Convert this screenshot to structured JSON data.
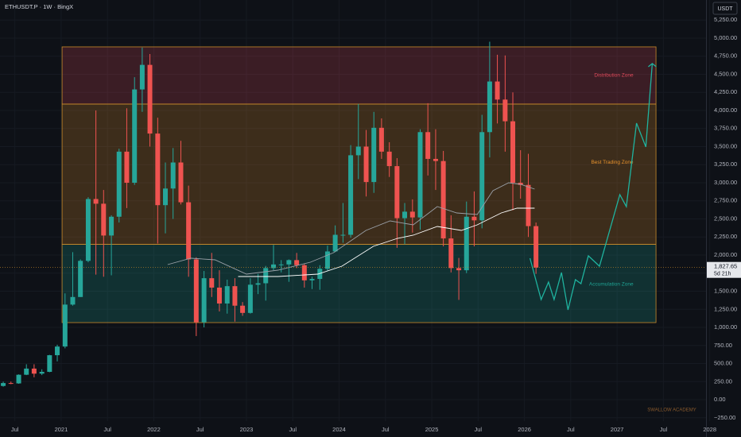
{
  "chart_data": {
    "type": "candlestick",
    "title": "ETHUSDT.P · 1W · BingX",
    "currency": "USDT",
    "watermark": "SWALLOW ACADEMY",
    "up_color": "#26a69a",
    "down_color": "#ef5350",
    "xlim": [
      2020.34,
      2027.96
    ],
    "ylim": [
      -516,
      5527
    ],
    "xticks": [
      {
        "value": 2020.5,
        "label": "Jul"
      },
      2021,
      {
        "value": 2021.5,
        "label": "Jul"
      },
      2022,
      {
        "value": 2022.5,
        "label": "Jul"
      },
      2023,
      {
        "value": 2023.5,
        "label": "Jul"
      },
      2024,
      {
        "value": 2024.5,
        "label": "Jul"
      },
      2025,
      {
        "value": 2025.5,
        "label": "Jul"
      },
      2026,
      {
        "value": 2026.5,
        "label": "Jul"
      },
      2027,
      {
        "value": 2027.5,
        "label": "Jul"
      },
      2028
    ],
    "yticks": [
      {
        "value": -250,
        "label": "−250.00"
      },
      {
        "value": 0,
        "label": "0.00"
      },
      {
        "value": 250,
        "label": "250.00"
      },
      {
        "value": 500,
        "label": "500.00"
      },
      {
        "value": 750,
        "label": "750.00"
      },
      {
        "value": 1000,
        "label": "1,000.00"
      },
      {
        "value": 1250,
        "label": "1,250.00"
      },
      {
        "value": 1500,
        "label": "1,500.00"
      },
      {
        "value": 1750,
        "label": "1,750.00"
      },
      {
        "value": 2000,
        "label": "2,000.00"
      },
      {
        "value": 2250,
        "label": "2,250.00"
      },
      {
        "value": 2500,
        "label": "2,500.00"
      },
      {
        "value": 2750,
        "label": "2,750.00"
      },
      {
        "value": 3000,
        "label": "3,000.00"
      },
      {
        "value": 3250,
        "label": "3,250.00"
      },
      {
        "value": 3500,
        "label": "3,500.00"
      },
      {
        "value": 3750,
        "label": "3,750.00"
      },
      {
        "value": 4000,
        "label": "4,000.00"
      },
      {
        "value": 4250,
        "label": "4,250.00"
      },
      {
        "value": 4500,
        "label": "4,500.00"
      },
      {
        "value": 4750,
        "label": "4,750.00"
      },
      {
        "value": 5000,
        "label": "5,000.00"
      },
      {
        "value": 5250,
        "label": "5,250.00"
      }
    ],
    "x": [
      2020.375,
      2020.458,
      2020.542,
      2020.625,
      2020.708,
      2020.792,
      2020.875,
      2020.958,
      2021.042,
      2021.125,
      2021.208,
      2021.292,
      2021.375,
      2021.458,
      2021.542,
      2021.625,
      2021.708,
      2021.792,
      2021.875,
      2021.958,
      2022.042,
      2022.125,
      2022.208,
      2022.292,
      2022.375,
      2022.458,
      2022.542,
      2022.625,
      2022.708,
      2022.792,
      2022.875,
      2022.958,
      2023.042,
      2023.125,
      2023.208,
      2023.292,
      2023.375,
      2023.458,
      2023.542,
      2023.625,
      2023.708,
      2023.792,
      2023.875,
      2023.958,
      2024.042,
      2024.125,
      2024.208,
      2024.292,
      2024.375,
      2024.458,
      2024.542,
      2024.625,
      2024.708,
      2024.792,
      2024.875,
      2024.958,
      2025.042,
      2025.125,
      2025.208,
      2025.292,
      2025.375,
      2025.458,
      2025.542,
      2025.625,
      2025.708,
      2025.792,
      2025.875,
      2025.958,
      2026.042,
      2026.125
    ],
    "open": [
      190,
      230,
      225,
      345,
      430,
      360,
      385,
      615,
      735,
      1315,
      1420,
      1920,
      2775,
      2710,
      2270,
      2530,
      3430,
      3000,
      4290,
      4630,
      3680,
      2690,
      2920,
      3280,
      2730,
      1940,
      1070,
      1680,
      1550,
      1330,
      1570,
      1300,
      1200,
      1590,
      1610,
      1820,
      1870,
      1870,
      1930,
      1860,
      1650,
      1670,
      1810,
      2050,
      2280,
      2280,
      3380,
      3500,
      3010,
      3760,
      3430,
      3230,
      2510,
      2600,
      2520,
      3700,
      3330,
      3300,
      2230,
      1820,
      1790,
      2530,
      2480,
      3700,
      4400,
      4150,
      3850,
      3000,
      2970,
      2400
    ],
    "high": [
      250,
      250,
      350,
      490,
      490,
      420,
      620,
      760,
      1470,
      2040,
      1940,
      2800,
      4000,
      2900,
      2550,
      3470,
      4030,
      4460,
      4870,
      4780,
      3900,
      3280,
      3480,
      3580,
      2960,
      1970,
      1780,
      2030,
      1790,
      1660,
      1680,
      1350,
      1680,
      1740,
      1850,
      2140,
      1930,
      1940,
      2030,
      1880,
      1700,
      1860,
      2130,
      2410,
      2720,
      3520,
      4090,
      3730,
      3980,
      3890,
      3560,
      3340,
      2720,
      2770,
      3740,
      4100,
      3740,
      3440,
      2550,
      1960,
      2740,
      2880,
      3940,
      4950,
      4770,
      4760,
      4250,
      3450,
      3400,
      2450
    ],
    "low": [
      180,
      215,
      220,
      340,
      310,
      340,
      380,
      530,
      710,
      1300,
      1420,
      1900,
      1730,
      1700,
      1720,
      2450,
      2650,
      2970,
      3980,
      3500,
      2160,
      2300,
      2500,
      2700,
      1700,
      880,
      1000,
      1420,
      1220,
      1190,
      1080,
      1160,
      1190,
      1460,
      1370,
      1790,
      1760,
      1630,
      1820,
      1550,
      1530,
      1520,
      1780,
      2040,
      2170,
      2240,
      3050,
      2810,
      2860,
      3330,
      3080,
      2100,
      2150,
      2310,
      2350,
      3100,
      2900,
      2120,
      1760,
      1380,
      1750,
      2120,
      2370,
      3350,
      3820,
      3430,
      2620,
      2780,
      2250,
      1740
    ],
    "close": [
      230,
      225,
      345,
      430,
      360,
      385,
      615,
      735,
      1315,
      1420,
      1920,
      2775,
      2710,
      2270,
      2530,
      3430,
      3000,
      4290,
      4630,
      3680,
      2690,
      2920,
      3280,
      2730,
      1940,
      1070,
      1680,
      1550,
      1330,
      1570,
      1300,
      1200,
      1590,
      1610,
      1820,
      1870,
      1870,
      1930,
      1860,
      1650,
      1670,
      1810,
      2050,
      2280,
      2280,
      3380,
      3500,
      3010,
      3760,
      3430,
      3230,
      2510,
      2600,
      2520,
      3700,
      3330,
      3300,
      2230,
      1820,
      1790,
      2530,
      2480,
      3700,
      4400,
      4150,
      3850,
      3000,
      2970,
      2400,
      1827.65
    ],
    "price_line": {
      "value": 1827.65,
      "label": "1,827.65",
      "countdown": "5d 21h"
    },
    "zones": [
      {
        "name": "Distribution Zone",
        "from": 4088,
        "to": 4879,
        "x": [
          2021.01,
          2027.42
        ],
        "color": "#e04a5a"
      },
      {
        "name": "Best Trading Zone",
        "from": 2148,
        "to": 4088,
        "x": [
          2021.01,
          2027.42
        ],
        "color": "#e8922e"
      },
      {
        "name": "Accumulation Zone",
        "from": 1066,
        "to": 2148,
        "x": [
          2021.01,
          2027.42
        ],
        "color": "#1fa394"
      }
    ],
    "lines": [
      {
        "color": "#9aa0a8",
        "x": [
          2022.15,
          2022.4,
          2022.66,
          2023.0,
          2023.34,
          2023.69,
          2023.94,
          2024.29,
          2024.55,
          2024.8,
          2025.06,
          2025.27,
          2025.49,
          2025.66,
          2025.83,
          2025.96,
          2026.11
        ],
        "values": [
          1868,
          1956,
          1934,
          1736,
          1791,
          1901,
          2033,
          2341,
          2473,
          2418,
          2670,
          2582,
          2560,
          2890,
          3000,
          2978,
          2912
        ]
      },
      {
        "color": "#ffffff",
        "x": [
          2022.91,
          2023.34,
          2023.77,
          2024.03,
          2024.37,
          2024.63,
          2024.8,
          2025.06,
          2025.32,
          2025.49,
          2025.75,
          2025.92,
          2026.11
        ],
        "values": [
          1703,
          1703,
          1736,
          1846,
          2121,
          2231,
          2275,
          2396,
          2341,
          2418,
          2582,
          2648,
          2648
        ]
      },
      {
        "color": "#1fb39f",
        "x": [
          2026.06,
          2026.18,
          2026.26,
          2026.32,
          2026.4,
          2026.47,
          2026.55,
          2026.61,
          2026.69,
          2026.81,
          2027.03,
          2027.1,
          2027.21,
          2027.31,
          2027.38
        ],
        "values": [
          1956,
          1385,
          1626,
          1385,
          1758,
          1242,
          1659,
          1604,
          1989,
          1846,
          2835,
          2670,
          3824,
          3495,
          4648
        ]
      }
    ]
  }
}
